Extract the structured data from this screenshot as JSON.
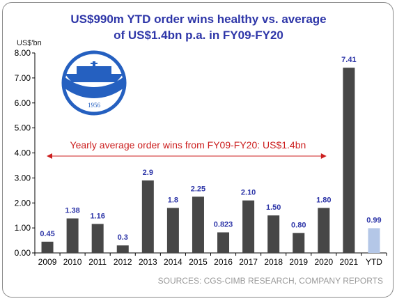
{
  "chart_data": {
    "type": "bar",
    "title": "US$990m YTD order wins healthy vs. average",
    "subtitle": "of US$1.4bn p.a. in FY09-FY20",
    "ylabel": "US$'bn",
    "ylim": [
      0,
      8
    ],
    "yticks": [
      "0.00",
      "1.00",
      "2.00",
      "3.00",
      "4.00",
      "5.00",
      "6.00",
      "7.00",
      "8.00"
    ],
    "grid": false,
    "categories": [
      "2009",
      "2010",
      "2011",
      "2012",
      "2013",
      "2014",
      "2015",
      "2016",
      "2017",
      "2018",
      "2019",
      "2020",
      "2021",
      "YTD"
    ],
    "values": [
      0.45,
      1.38,
      1.16,
      0.3,
      2.9,
      1.8,
      2.25,
      0.823,
      2.1,
      1.5,
      0.8,
      1.8,
      7.41,
      0.99
    ],
    "data_labels": [
      "0.45",
      "1.38",
      "1.16",
      "0.3",
      "2.9",
      "1.8",
      "2.25",
      "0.823",
      "2.10",
      "1.50",
      "0.80",
      "1.80",
      "7.41",
      "0.99"
    ],
    "colors": {
      "bar": "#474747",
      "highlight": "#b4c7e7",
      "label": "#2e36a8",
      "annotation": "#cc1f1f",
      "title": "#2e36a8"
    },
    "annotation": "Yearly average order wins from FY09-FY20: US$1.4bn",
    "logo_text": "1956",
    "source": "SOURCES: CGS-CIMB RESEARCH, COMPANY REPORTS"
  }
}
